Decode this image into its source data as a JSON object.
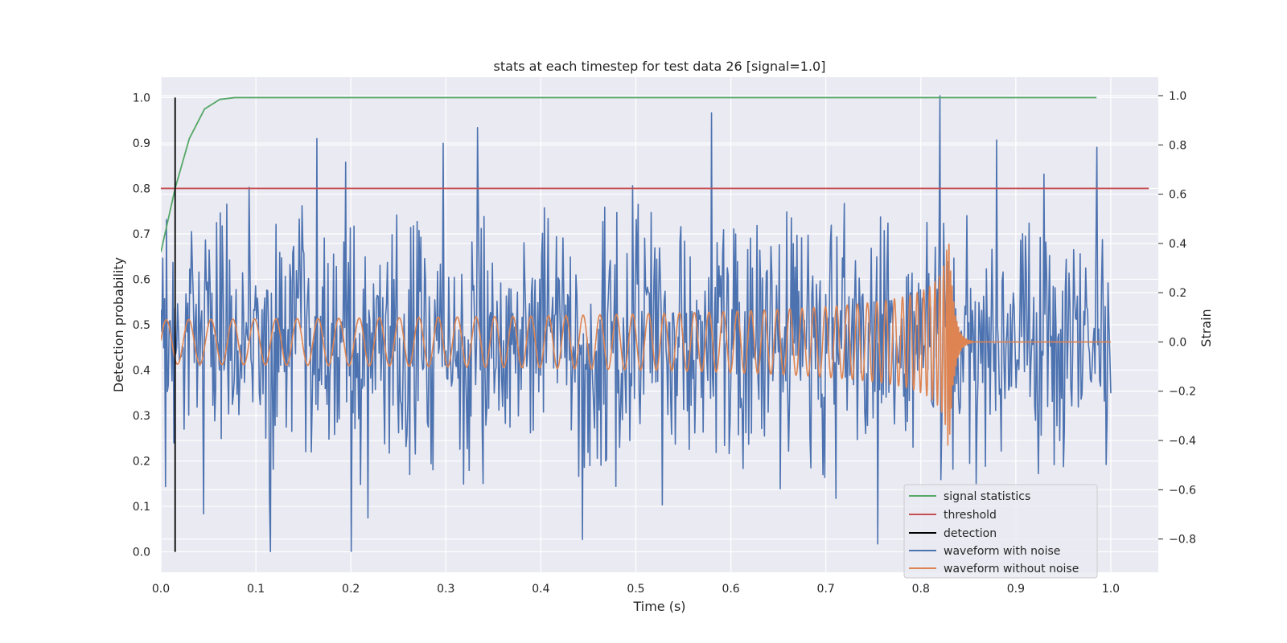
{
  "chart_data": {
    "type": "line",
    "title": "stats at each timestep for test data 26 [signal=1.0]",
    "xlabel": "Time (s)",
    "ylabel": "Detection probability",
    "y2label": "Strain",
    "xlim": [
      0.0,
      1.05
    ],
    "ylim": [
      -0.045,
      1.045
    ],
    "y2lim": [
      -0.935,
      1.075
    ],
    "xticks": [
      "0.0",
      "0.1",
      "0.2",
      "0.3",
      "0.4",
      "0.5",
      "0.6",
      "0.7",
      "0.8",
      "0.9",
      "1.0"
    ],
    "yticks": [
      "0.0",
      "0.1",
      "0.2",
      "0.3",
      "0.4",
      "0.5",
      "0.6",
      "0.7",
      "0.8",
      "0.9",
      "1.0"
    ],
    "y2ticks": [
      "−0.8",
      "−0.6",
      "−0.4",
      "−0.2",
      "0.0",
      "0.2",
      "0.4",
      "0.6",
      "0.8",
      "1.0"
    ],
    "grid": true,
    "legend_position": "lower-right",
    "series": [
      {
        "name": "signal statistics",
        "axis": "left",
        "color": "#55a868",
        "x": [
          0.0,
          0.015,
          0.03,
          0.046,
          0.062,
          0.078,
          0.1,
          0.2,
          0.3,
          0.4,
          0.5,
          0.6,
          0.7,
          0.8,
          0.9,
          0.985
        ],
        "y": [
          0.66,
          0.8,
          0.91,
          0.975,
          0.996,
          1.0,
          1.0,
          1.0,
          1.0,
          1.0,
          1.0,
          1.0,
          1.0,
          1.0,
          1.0,
          1.0
        ]
      },
      {
        "name": "threshold",
        "axis": "left",
        "color": "#c44e52",
        "x": [
          0.0,
          1.04
        ],
        "y": [
          0.8,
          0.8
        ]
      },
      {
        "name": "detection",
        "axis": "left",
        "color": "#000000",
        "x": [
          0.015,
          0.015
        ],
        "y": [
          0.0,
          1.0
        ]
      },
      {
        "name": "waveform with noise",
        "axis": "right",
        "color": "#4c72b0",
        "generated": "noise",
        "x_range": [
          0.0,
          1.0
        ],
        "samples": 1024,
        "amplitude": 0.25,
        "peaks": [
          {
            "x": 0.195,
            "y": 0.73
          },
          {
            "x": 0.333,
            "y": 0.87
          },
          {
            "x": 0.2,
            "y": -0.85
          },
          {
            "x": 0.58,
            "y": 0.93
          },
          {
            "x": 0.82,
            "y": 1.0
          },
          {
            "x": 0.755,
            "y": -0.82
          },
          {
            "x": 0.88,
            "y": 0.82
          },
          {
            "x": 0.985,
            "y": 0.79
          }
        ]
      },
      {
        "name": "waveform without noise",
        "axis": "right",
        "color": "#dd8452",
        "generated": "chirp",
        "x_range": [
          0.0,
          1.0
        ],
        "merger_time": 0.83,
        "amplitude_start": 0.09,
        "amplitude_peak": 0.42,
        "freq_start": 42,
        "ringdown_end": 0.855
      }
    ]
  }
}
